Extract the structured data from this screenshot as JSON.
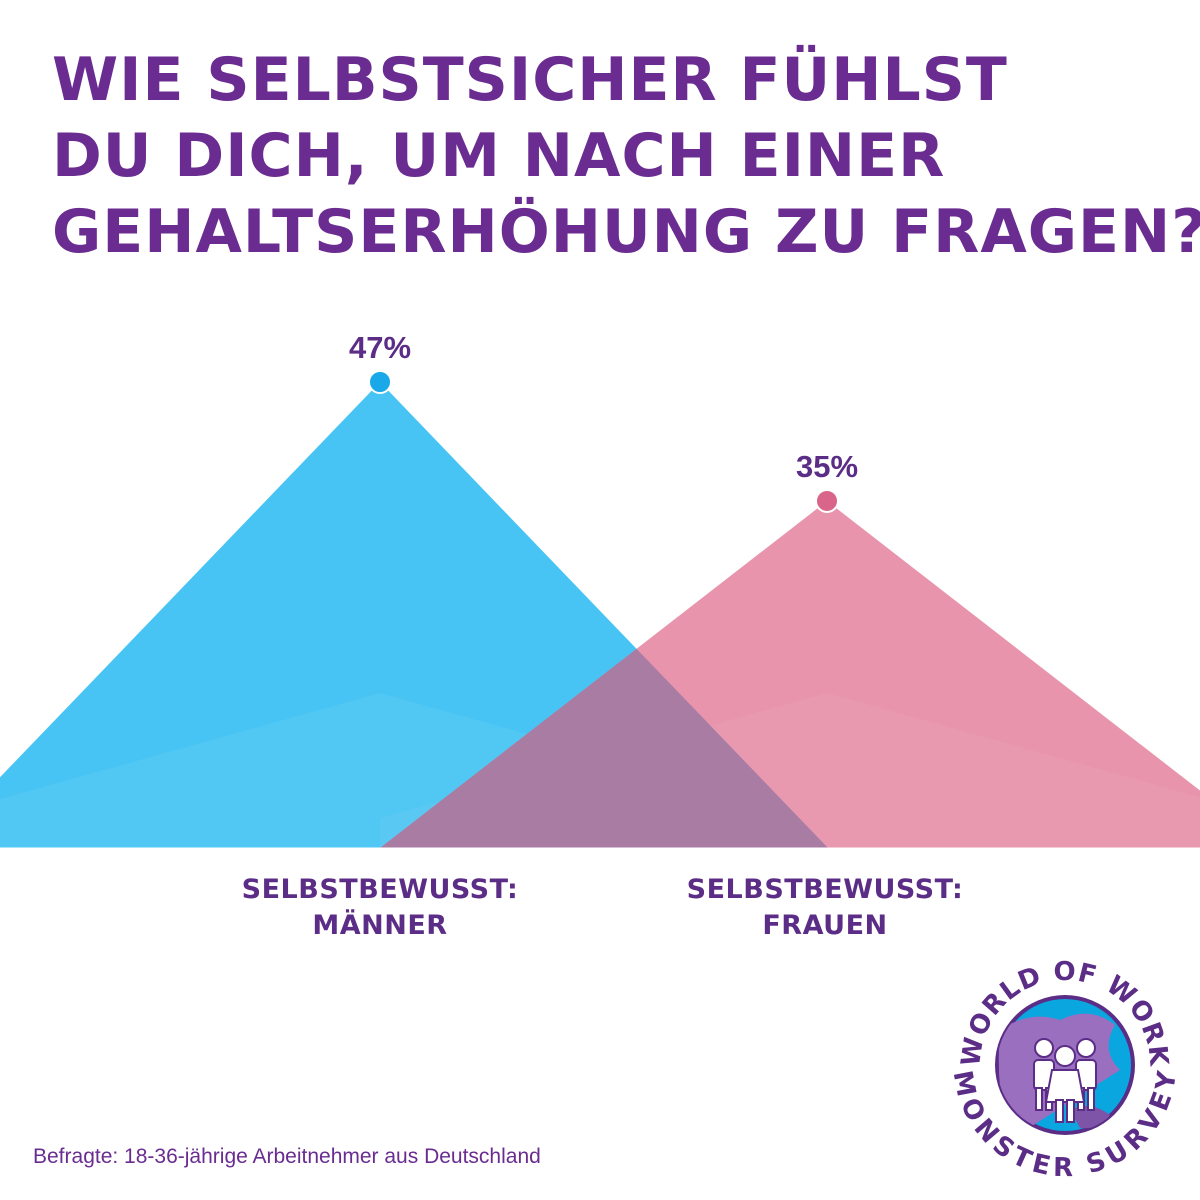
{
  "title_lines": [
    "WIE SELBSTSICHER FÜHLST",
    "DU DICH, UM NACH EINER",
    "GEHALTSERHÖHUNG ZU FRAGEN?"
  ],
  "chart_data": {
    "type": "area",
    "title": "WIE SELBSTSICHER FÜHLST DU DICH, UM NACH EINER GEHALTSERHÖHUNG ZU FRAGEN?",
    "unit": "%",
    "ylim": [
      0,
      47
    ],
    "categories": [
      {
        "line1": "SELBSTBEWUSST:",
        "line2": "MÄNNER",
        "value": 47,
        "value_label": "47%",
        "color": "#3ec1f3"
      },
      {
        "line1": "SELBSTBEWUSST:",
        "line2": "FRAUEN",
        "value": 35,
        "value_label": "35%",
        "color": "#e3819d"
      }
    ],
    "overlap_color": "#a97ca4",
    "grid": false
  },
  "footnote": "Befragte: 18-36-jährige Arbeitnehmer aus Deutschland",
  "logo": {
    "top_text": "WORLD OF WORK",
    "bottom_text": "MONSTER SURVEY",
    "icon": "people-globe-icon",
    "colors": {
      "ring": "#5b2d86",
      "sea": "#0aa6e0",
      "land": "#9b6fbf"
    }
  },
  "colors": {
    "title": "#6a2c91",
    "label": "#5b2d86"
  }
}
